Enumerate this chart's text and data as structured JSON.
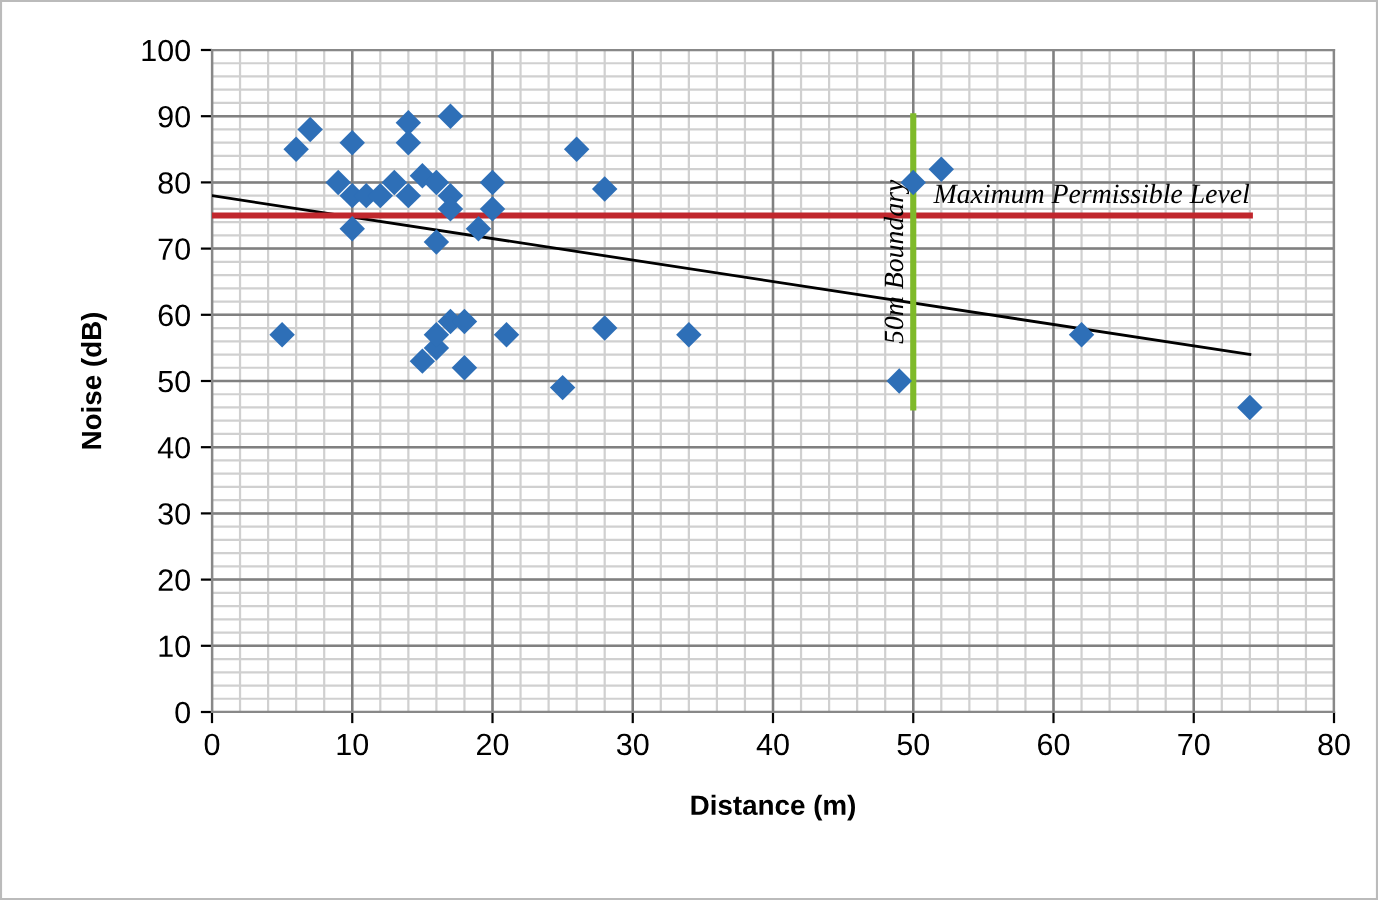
{
  "chart_data": {
    "type": "scatter",
    "xlabel": "Distance (m)",
    "ylabel": "Noise (dB)",
    "xlim": [
      0,
      80
    ],
    "ylim": [
      0,
      100
    ],
    "xticks": [
      0,
      10,
      20,
      30,
      40,
      50,
      60,
      70,
      80
    ],
    "yticks": [
      0,
      10,
      20,
      30,
      40,
      50,
      60,
      70,
      80,
      90,
      100
    ],
    "grid": true,
    "legend": false,
    "series": [
      {
        "marker": "diamond",
        "color": "#2e6fb7",
        "x": [
          5,
          6,
          7,
          9,
          10,
          10,
          10,
          11,
          12,
          13,
          14,
          14,
          14,
          15,
          15,
          16,
          16,
          16,
          16,
          17,
          17,
          17,
          17,
          18,
          18,
          19,
          20,
          20,
          21,
          25,
          26,
          28,
          28,
          34,
          49,
          50,
          52,
          62,
          74
        ],
        "values": [
          57,
          85,
          88,
          80,
          86,
          78,
          73,
          78,
          78,
          80,
          89,
          86,
          78,
          81,
          53,
          80,
          71,
          55,
          57,
          90,
          78,
          76,
          59,
          59,
          52,
          73,
          80,
          76,
          57,
          49,
          85,
          79,
          58,
          57,
          50,
          80,
          82,
          57,
          46
        ]
      },
      {
        "type": "line",
        "marker": "none",
        "color": "#000000",
        "x": [
          0,
          74
        ],
        "values": [
          78,
          54
        ]
      },
      {
        "type": "line",
        "marker": "none",
        "name": "Maximum Permissible Level",
        "color": "#c0272d",
        "x": [
          0,
          74
        ],
        "values": [
          75,
          75
        ]
      },
      {
        "type": "line",
        "marker": "none",
        "name": "50m Boundary",
        "color": "#7fba2a",
        "x": [
          50,
          50
        ],
        "values": [
          46,
          90
        ]
      }
    ]
  }
}
